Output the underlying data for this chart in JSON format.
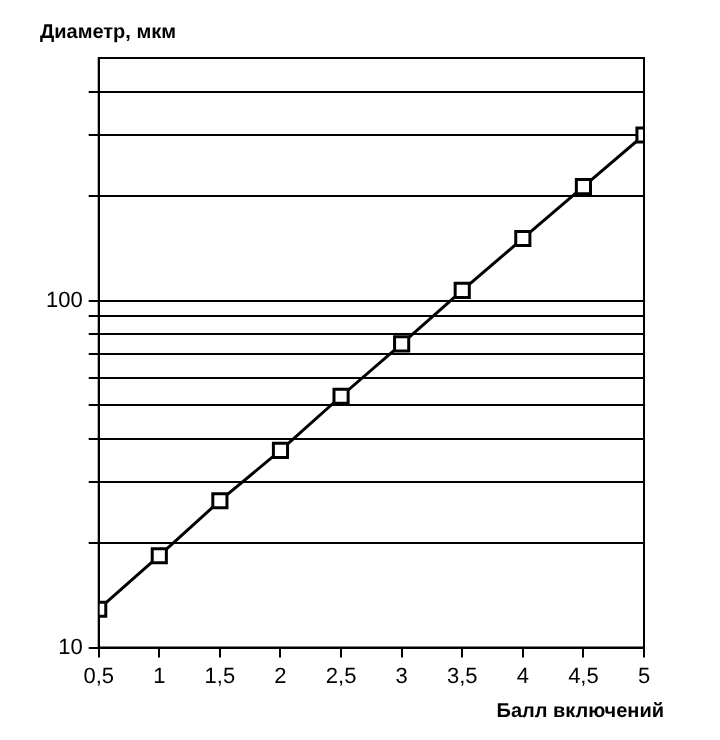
{
  "chart_data": {
    "type": "line",
    "xlabel": "Балл включений",
    "ylabel": "Диаметр, мкм",
    "x": [
      0.5,
      1,
      1.5,
      2,
      2.5,
      3,
      3.5,
      4,
      4.5,
      5
    ],
    "series": [
      {
        "color": "#000000",
        "values": [
          12.9,
          18.4,
          26.5,
          37,
          53,
          75,
          107,
          151,
          213,
          300
        ]
      }
    ],
    "xlim": [
      0.5,
      5
    ],
    "xticks": [
      {
        "value": 0.5,
        "label": "0,5"
      },
      1,
      {
        "value": 1.5,
        "label": "1,5"
      },
      2,
      {
        "value": 2.5,
        "label": "2,5"
      },
      3,
      {
        "value": 3.5,
        "label": "3,5"
      },
      4,
      {
        "value": 4.5,
        "label": "4,5"
      },
      5
    ],
    "ylim": [
      10,
      500
    ],
    "yticks": [
      10,
      {
        "value": 20,
        "label": null
      },
      {
        "value": 30,
        "label": null
      },
      {
        "value": 40,
        "label": null
      },
      {
        "value": 50,
        "label": null
      },
      {
        "value": 60,
        "label": null
      },
      {
        "value": 70,
        "label": null
      },
      {
        "value": 80,
        "label": null
      },
      {
        "value": 90,
        "label": null
      },
      100,
      {
        "value": 200,
        "label": null
      },
      {
        "value": 300,
        "label": null
      },
      {
        "value": 400,
        "label": null
      }
    ],
    "log": "y",
    "grid": "y",
    "legend": false,
    "marker": "square",
    "line_style": "solid"
  }
}
